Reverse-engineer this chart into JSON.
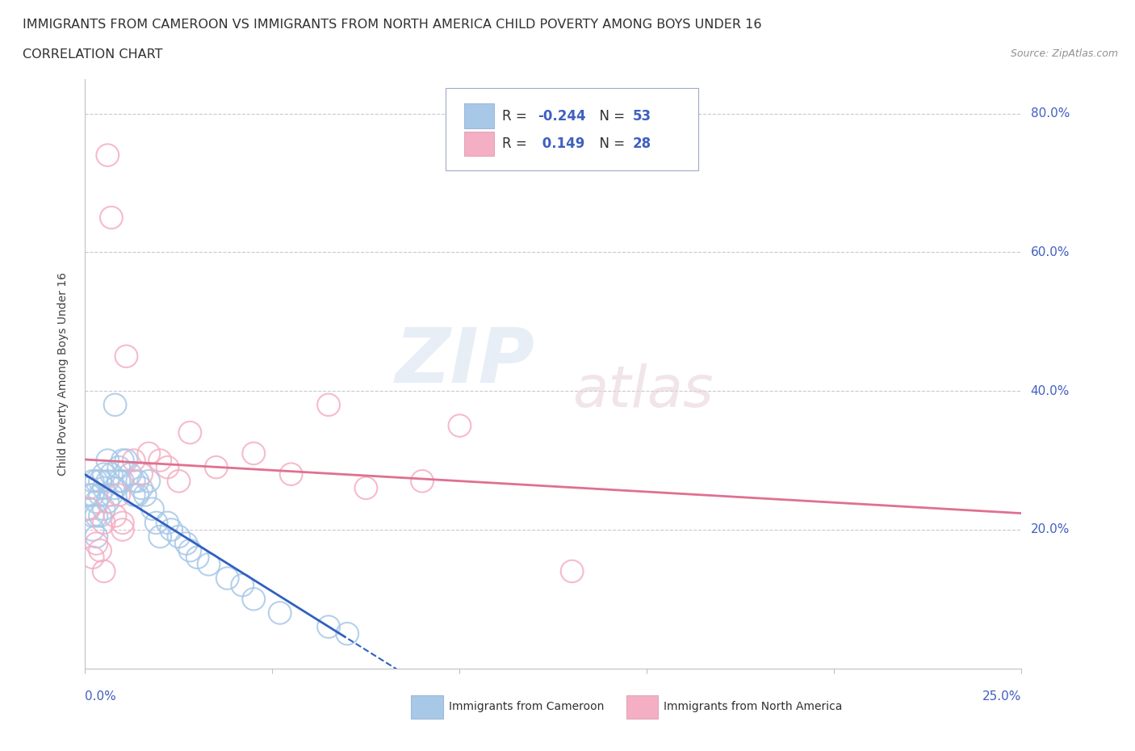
{
  "title": "IMMIGRANTS FROM CAMEROON VS IMMIGRANTS FROM NORTH AMERICA CHILD POVERTY AMONG BOYS UNDER 16",
  "subtitle": "CORRELATION CHART",
  "source": "Source: ZipAtlas.com",
  "ylabel": "Child Poverty Among Boys Under 16",
  "r_cameroon": -0.244,
  "n_cameroon": 53,
  "r_north_america": 0.149,
  "n_north_america": 28,
  "color_cameroon": "#a8c8e8",
  "color_north_america": "#f4afc4",
  "line_color_cameroon": "#3060c0",
  "line_color_north_america": "#e07090",
  "watermark_zip": "ZIP",
  "watermark_atlas": "atlas",
  "background_color": "#ffffff",
  "xlim": [
    0,
    0.25
  ],
  "ylim": [
    0,
    0.85
  ],
  "ytick_vals": [
    0.2,
    0.4,
    0.6,
    0.8
  ],
  "ytick_labels": [
    "20.0%",
    "40.0%",
    "60.0%",
    "80.0%"
  ],
  "xtick_label_left": "0.0%",
  "xtick_label_right": "25.0%",
  "legend_label_cam": "Immigrants from Cameroon",
  "legend_label_na": "Immigrants from North America",
  "cam_x": [
    0.001,
    0.001,
    0.001,
    0.002,
    0.002,
    0.002,
    0.002,
    0.003,
    0.003,
    0.003,
    0.003,
    0.004,
    0.004,
    0.004,
    0.005,
    0.005,
    0.005,
    0.006,
    0.006,
    0.006,
    0.007,
    0.007,
    0.008,
    0.008,
    0.009,
    0.009,
    0.01,
    0.01,
    0.011,
    0.012,
    0.013,
    0.013,
    0.014,
    0.014,
    0.015,
    0.016,
    0.017,
    0.018,
    0.019,
    0.02,
    0.022,
    0.023,
    0.025,
    0.027,
    0.028,
    0.03,
    0.033,
    0.038,
    0.042,
    0.045,
    0.052,
    0.065,
    0.07
  ],
  "cam_y": [
    0.26,
    0.25,
    0.23,
    0.27,
    0.25,
    0.22,
    0.2,
    0.27,
    0.24,
    0.22,
    0.19,
    0.27,
    0.25,
    0.22,
    0.28,
    0.26,
    0.23,
    0.3,
    0.27,
    0.24,
    0.28,
    0.25,
    0.38,
    0.26,
    0.29,
    0.27,
    0.3,
    0.27,
    0.3,
    0.28,
    0.27,
    0.25,
    0.27,
    0.25,
    0.26,
    0.25,
    0.27,
    0.23,
    0.21,
    0.19,
    0.21,
    0.2,
    0.19,
    0.18,
    0.17,
    0.16,
    0.15,
    0.13,
    0.12,
    0.1,
    0.08,
    0.06,
    0.05
  ],
  "na_x": [
    0.001,
    0.002,
    0.003,
    0.004,
    0.005,
    0.005,
    0.006,
    0.007,
    0.008,
    0.009,
    0.01,
    0.01,
    0.011,
    0.013,
    0.015,
    0.017,
    0.02,
    0.022,
    0.025,
    0.028,
    0.035,
    0.045,
    0.055,
    0.065,
    0.075,
    0.09,
    0.1,
    0.13
  ],
  "na_y": [
    0.23,
    0.16,
    0.18,
    0.17,
    0.21,
    0.14,
    0.74,
    0.65,
    0.22,
    0.25,
    0.21,
    0.2,
    0.45,
    0.3,
    0.28,
    0.31,
    0.3,
    0.29,
    0.27,
    0.34,
    0.29,
    0.31,
    0.28,
    0.38,
    0.26,
    0.27,
    0.35,
    0.14
  ]
}
